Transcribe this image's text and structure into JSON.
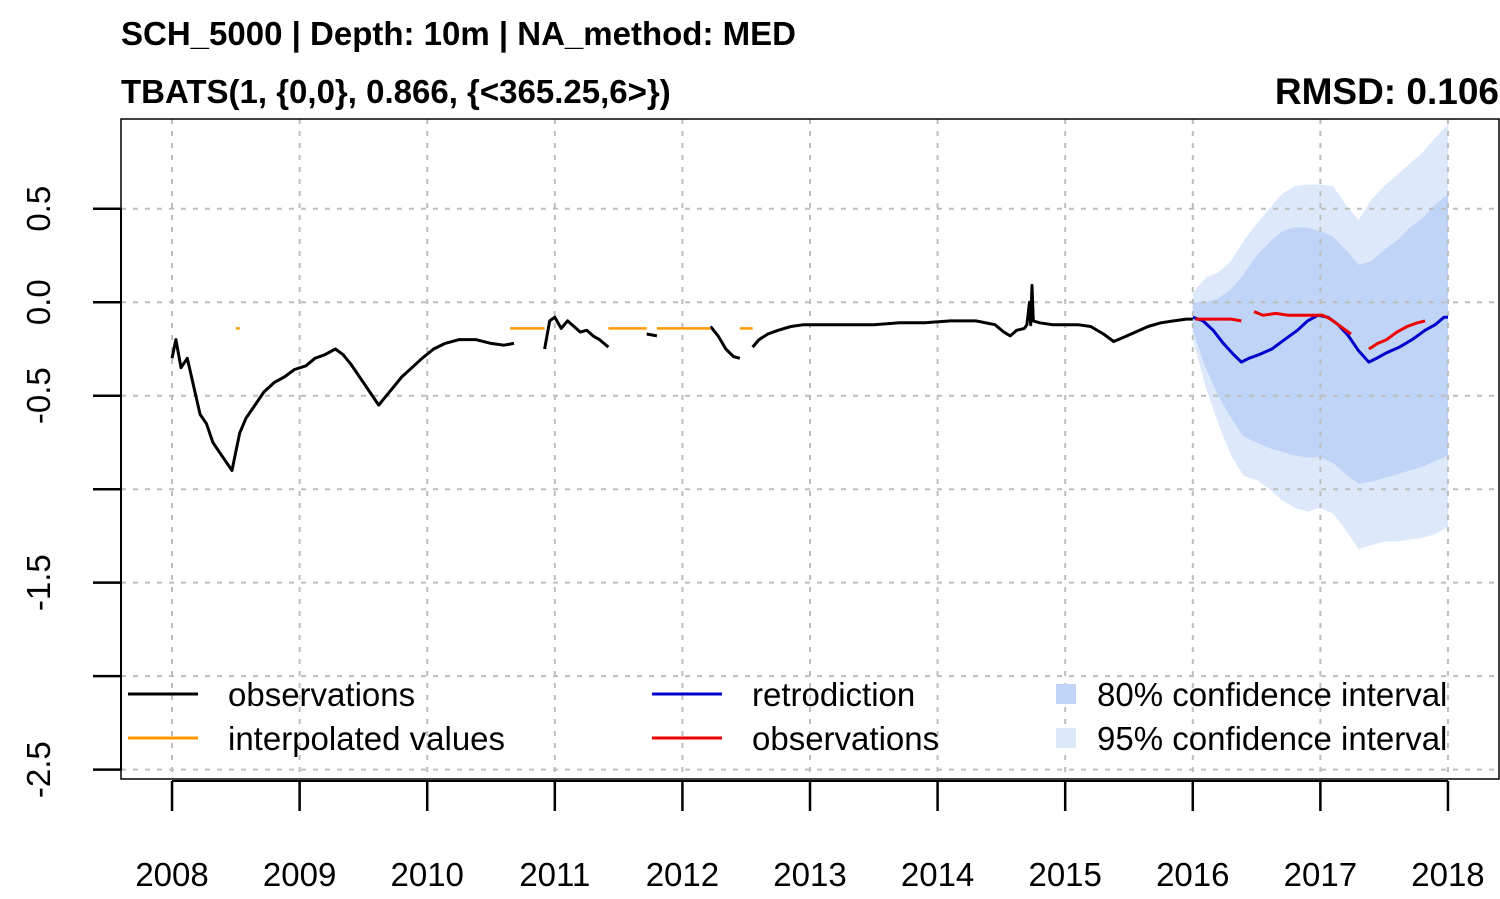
{
  "chart_data": {
    "type": "line",
    "title": "SCH_5000 | Depth: 10m | NA_method: MED",
    "subtitle": "TBATS(1, {0,0}, 0.866, {<365.25,6>})",
    "annotation": "RMSD: 0.106",
    "xlabel": "",
    "ylabel": "",
    "xlim": [
      2007.6,
      2018.4
    ],
    "ylim": [
      -2.55,
      0.98
    ],
    "x_ticks": [
      2008,
      2009,
      2010,
      2011,
      2012,
      2013,
      2014,
      2015,
      2016,
      2017,
      2018
    ],
    "x_tick_labels": [
      "2008",
      "2009",
      "2010",
      "2011",
      "2012",
      "2013",
      "2014",
      "2015",
      "2016",
      "2017",
      "2018"
    ],
    "y_ticks": [
      -2.5,
      -2.0,
      -1.5,
      -1.0,
      -0.5,
      0.0,
      0.5
    ],
    "y_tick_labels": [
      "-2.5",
      "",
      "-1.5",
      "",
      "-0.5",
      "0.0",
      "0.5"
    ],
    "grid": true,
    "legend_position": "bottom",
    "colors": {
      "observations": "#000000",
      "interpolated": "#FF9900",
      "retrodiction": "#0000CC",
      "test_observations": "#EE0000",
      "ci80": "#BFD4F7",
      "ci95": "#DDE8FB"
    },
    "series": [
      {
        "name": "observations",
        "color": "#000000",
        "segments": [
          [
            [
              2008.0,
              -0.3
            ],
            [
              2008.03,
              -0.2
            ],
            [
              2008.07,
              -0.35
            ],
            [
              2008.12,
              -0.3
            ],
            [
              2008.17,
              -0.45
            ],
            [
              2008.22,
              -0.6
            ],
            [
              2008.27,
              -0.65
            ],
            [
              2008.32,
              -0.75
            ],
            [
              2008.37,
              -0.8
            ],
            [
              2008.42,
              -0.85
            ],
            [
              2008.47,
              -0.9
            ],
            [
              2008.5,
              -0.8
            ],
            [
              2008.53,
              -0.7
            ],
            [
              2008.58,
              -0.62
            ],
            [
              2008.65,
              -0.55
            ],
            [
              2008.72,
              -0.48
            ],
            [
              2008.8,
              -0.43
            ],
            [
              2008.88,
              -0.4
            ],
            [
              2008.96,
              -0.36
            ],
            [
              2009.05,
              -0.34
            ],
            [
              2009.12,
              -0.3
            ],
            [
              2009.2,
              -0.28
            ],
            [
              2009.28,
              -0.25
            ],
            [
              2009.34,
              -0.28
            ],
            [
              2009.4,
              -0.33
            ],
            [
              2009.47,
              -0.4
            ],
            [
              2009.55,
              -0.48
            ],
            [
              2009.62,
              -0.55
            ],
            [
              2009.68,
              -0.5
            ],
            [
              2009.74,
              -0.45
            ],
            [
              2009.8,
              -0.4
            ],
            [
              2009.88,
              -0.35
            ],
            [
              2009.96,
              -0.3
            ],
            [
              2010.05,
              -0.25
            ],
            [
              2010.14,
              -0.22
            ],
            [
              2010.25,
              -0.2
            ],
            [
              2010.38,
              -0.2
            ],
            [
              2010.5,
              -0.22
            ],
            [
              2010.6,
              -0.23
            ],
            [
              2010.68,
              -0.22
            ]
          ],
          [
            [
              2010.92,
              -0.25
            ],
            [
              2010.96,
              -0.1
            ],
            [
              2011.0,
              -0.08
            ],
            [
              2011.05,
              -0.14
            ],
            [
              2011.1,
              -0.1
            ],
            [
              2011.15,
              -0.13
            ],
            [
              2011.2,
              -0.16
            ],
            [
              2011.25,
              -0.15
            ],
            [
              2011.3,
              -0.18
            ],
            [
              2011.35,
              -0.2
            ],
            [
              2011.42,
              -0.24
            ]
          ],
          [
            [
              2011.72,
              -0.17
            ],
            [
              2011.8,
              -0.18
            ]
          ],
          [
            [
              2012.22,
              -0.13
            ],
            [
              2012.28,
              -0.18
            ],
            [
              2012.34,
              -0.25
            ],
            [
              2012.4,
              -0.29
            ],
            [
              2012.45,
              -0.3
            ]
          ],
          [
            [
              2012.55,
              -0.24
            ],
            [
              2012.6,
              -0.2
            ],
            [
              2012.67,
              -0.17
            ],
            [
              2012.75,
              -0.15
            ],
            [
              2012.85,
              -0.13
            ],
            [
              2012.95,
              -0.12
            ],
            [
              2013.1,
              -0.12
            ],
            [
              2013.3,
              -0.12
            ],
            [
              2013.5,
              -0.12
            ],
            [
              2013.7,
              -0.11
            ],
            [
              2013.9,
              -0.11
            ],
            [
              2014.1,
              -0.1
            ],
            [
              2014.3,
              -0.1
            ],
            [
              2014.45,
              -0.12
            ],
            [
              2014.52,
              -0.16
            ],
            [
              2014.57,
              -0.18
            ],
            [
              2014.62,
              -0.15
            ],
            [
              2014.68,
              -0.14
            ],
            [
              2014.7,
              -0.12
            ],
            [
              2014.72,
              0.0
            ],
            [
              2014.73,
              -0.12
            ],
            [
              2014.74,
              0.09
            ],
            [
              2014.75,
              -0.1
            ],
            [
              2014.8,
              -0.11
            ],
            [
              2014.9,
              -0.12
            ],
            [
              2015.0,
              -0.12
            ],
            [
              2015.1,
              -0.12
            ],
            [
              2015.2,
              -0.13
            ],
            [
              2015.3,
              -0.17
            ],
            [
              2015.38,
              -0.21
            ],
            [
              2015.45,
              -0.19
            ],
            [
              2015.55,
              -0.16
            ],
            [
              2015.65,
              -0.13
            ],
            [
              2015.75,
              -0.11
            ],
            [
              2015.85,
              -0.1
            ],
            [
              2015.95,
              -0.09
            ],
            [
              2016.0,
              -0.09
            ]
          ]
        ]
      },
      {
        "name": "interpolated values",
        "color": "#FF9900",
        "segments": [
          [
            [
              2008.5,
              -0.14
            ],
            [
              2008.53,
              -0.14
            ]
          ],
          [
            [
              2010.65,
              -0.14
            ],
            [
              2010.92,
              -0.14
            ]
          ],
          [
            [
              2011.42,
              -0.14
            ],
            [
              2011.72,
              -0.14
            ]
          ],
          [
            [
              2011.8,
              -0.14
            ],
            [
              2012.22,
              -0.14
            ]
          ],
          [
            [
              2012.45,
              -0.14
            ],
            [
              2012.55,
              -0.14
            ]
          ]
        ]
      },
      {
        "name": "retrodiction",
        "color": "#0000CC",
        "segments": [
          [
            [
              2016.0,
              -0.08
            ],
            [
              2016.08,
              -0.1
            ],
            [
              2016.16,
              -0.15
            ],
            [
              2016.24,
              -0.22
            ],
            [
              2016.32,
              -0.28
            ],
            [
              2016.38,
              -0.32
            ],
            [
              2016.44,
              -0.3
            ],
            [
              2016.52,
              -0.28
            ],
            [
              2016.62,
              -0.25
            ],
            [
              2016.72,
              -0.2
            ],
            [
              2016.82,
              -0.15
            ],
            [
              2016.9,
              -0.1
            ],
            [
              2016.98,
              -0.07
            ],
            [
              2017.06,
              -0.08
            ],
            [
              2017.14,
              -0.12
            ],
            [
              2017.22,
              -0.18
            ],
            [
              2017.3,
              -0.26
            ],
            [
              2017.38,
              -0.32
            ],
            [
              2017.44,
              -0.3
            ],
            [
              2017.52,
              -0.27
            ],
            [
              2017.62,
              -0.24
            ],
            [
              2017.72,
              -0.2
            ],
            [
              2017.82,
              -0.15
            ],
            [
              2017.9,
              -0.12
            ],
            [
              2017.97,
              -0.08
            ],
            [
              2018.0,
              -0.08
            ]
          ]
        ]
      },
      {
        "name": "observations",
        "color": "#EE0000",
        "segments": [
          [
            [
              2016.02,
              -0.09
            ],
            [
              2016.1,
              -0.09
            ],
            [
              2016.2,
              -0.09
            ],
            [
              2016.3,
              -0.09
            ],
            [
              2016.38,
              -0.1
            ]
          ],
          [
            [
              2016.48,
              -0.05
            ],
            [
              2016.55,
              -0.07
            ],
            [
              2016.65,
              -0.06
            ],
            [
              2016.75,
              -0.07
            ],
            [
              2016.85,
              -0.07
            ],
            [
              2016.95,
              -0.07
            ],
            [
              2017.02,
              -0.07
            ],
            [
              2017.08,
              -0.09
            ],
            [
              2017.14,
              -0.12
            ],
            [
              2017.2,
              -0.15
            ],
            [
              2017.24,
              -0.17
            ]
          ],
          [
            [
              2017.38,
              -0.25
            ],
            [
              2017.45,
              -0.22
            ],
            [
              2017.52,
              -0.2
            ],
            [
              2017.6,
              -0.16
            ],
            [
              2017.68,
              -0.13
            ],
            [
              2017.76,
              -0.11
            ],
            [
              2017.82,
              -0.1
            ]
          ]
        ]
      }
    ],
    "intervals": [
      {
        "name": "95% confidence interval",
        "color": "#DDE8FB",
        "x": [
          2016.0,
          2016.1,
          2016.2,
          2016.3,
          2016.4,
          2016.5,
          2016.6,
          2016.7,
          2016.8,
          2016.9,
          2017.0,
          2017.1,
          2017.2,
          2017.3,
          2017.4,
          2017.5,
          2017.6,
          2017.7,
          2017.8,
          2017.9,
          2018.0
        ],
        "upper": [
          0.05,
          0.13,
          0.16,
          0.22,
          0.33,
          0.42,
          0.5,
          0.58,
          0.62,
          0.63,
          0.63,
          0.62,
          0.52,
          0.44,
          0.55,
          0.62,
          0.68,
          0.74,
          0.8,
          0.88,
          0.95
        ],
        "lower": [
          -0.2,
          -0.45,
          -0.65,
          -0.82,
          -0.93,
          -0.95,
          -1.0,
          -1.06,
          -1.1,
          -1.12,
          -1.1,
          -1.13,
          -1.22,
          -1.32,
          -1.3,
          -1.28,
          -1.28,
          -1.27,
          -1.26,
          -1.24,
          -1.2
        ]
      },
      {
        "name": "80% confidence interval",
        "color": "#BFD4F7",
        "x": [
          2016.0,
          2016.1,
          2016.2,
          2016.3,
          2016.4,
          2016.5,
          2016.6,
          2016.7,
          2016.8,
          2016.9,
          2017.0,
          2017.1,
          2017.2,
          2017.3,
          2017.4,
          2017.5,
          2017.6,
          2017.7,
          2017.8,
          2017.9,
          2018.0
        ],
        "upper": [
          0.0,
          0.0,
          0.02,
          0.07,
          0.15,
          0.25,
          0.32,
          0.38,
          0.4,
          0.4,
          0.38,
          0.35,
          0.28,
          0.2,
          0.22,
          0.28,
          0.33,
          0.4,
          0.45,
          0.52,
          0.58
        ],
        "lower": [
          -0.15,
          -0.35,
          -0.5,
          -0.62,
          -0.72,
          -0.75,
          -0.78,
          -0.8,
          -0.82,
          -0.83,
          -0.83,
          -0.86,
          -0.92,
          -0.97,
          -0.96,
          -0.94,
          -0.92,
          -0.9,
          -0.88,
          -0.85,
          -0.82
        ]
      }
    ]
  },
  "legend": [
    {
      "label": "observations",
      "kind": "line",
      "color": "#000000"
    },
    {
      "label": "interpolated values",
      "kind": "line",
      "color": "#FF9900"
    },
    {
      "label": "retrodiction",
      "kind": "line",
      "color": "#0000CC"
    },
    {
      "label": "observations",
      "kind": "line",
      "color": "#EE0000"
    },
    {
      "label": "80% confidence interval",
      "kind": "box",
      "color": "#BFD4F7"
    },
    {
      "label": "95% confidence interval",
      "kind": "box",
      "color": "#DDE8FB"
    }
  ]
}
